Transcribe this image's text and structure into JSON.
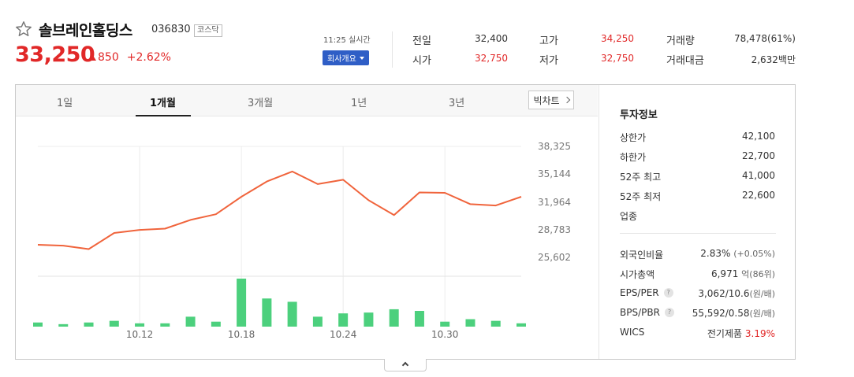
{
  "stock": {
    "name": "솔브레인홀딩스",
    "code": "036830",
    "market": "코스닥",
    "price": "33,250",
    "change": "850",
    "change_rate": "+2.62%",
    "realtime": "11:25 실시간",
    "overview_label": "회사개요"
  },
  "quotes": {
    "prev_close_label": "전일",
    "prev_close": "32,400",
    "open_label": "시가",
    "open": "32,750",
    "high_label": "고가",
    "high": "34,250",
    "low_label": "저가",
    "low": "32,750",
    "volume_label": "거래량",
    "volume": "78,478(61%)",
    "amount_label": "거래대금",
    "amount": "2,632백만"
  },
  "tabs": [
    {
      "label": "1일"
    },
    {
      "label": "1개월"
    },
    {
      "label": "3개월"
    },
    {
      "label": "1년"
    },
    {
      "label": "3년"
    }
  ],
  "bigchart_label": "빅차트",
  "info": {
    "title": "투자정보",
    "upper_limit_label": "상한가",
    "upper_limit": "42,100",
    "lower_limit_label": "하한가",
    "lower_limit": "22,700",
    "week52_high_label": "52주 최고",
    "week52_high": "41,000",
    "week52_low_label": "52주 최저",
    "week52_low": "22,600",
    "sector_label": "업종",
    "foreign_label": "외국인비율",
    "foreign_value": "2.83%",
    "foreign_change": "(+0.05%)",
    "market_cap_label": "시가총액",
    "market_cap_value": "6,971",
    "market_cap_unit": "억(86위)",
    "eps_label": "EPS/PER",
    "eps_value": "3,062/10.6",
    "eps_unit": "(원/배)",
    "bps_label": "BPS/PBR",
    "bps_value": "55,592/0.58",
    "bps_unit": "(원/배)",
    "wics_label": "WICS",
    "wics_sector": "전기제품",
    "wics_rate": "3.19%"
  },
  "colors": {
    "up": "#e12828",
    "down": "#2f5ec6",
    "line": "#f0643c",
    "volume_bar": "#4cd07d"
  },
  "chart_data": {
    "type": "line",
    "y_ticks": [
      "38,325",
      "35,144",
      "31,964",
      "28,783",
      "25,602"
    ],
    "x_ticks": [
      "10.12",
      "10.18",
      "10.24",
      "10.30"
    ],
    "ylim": [
      25602,
      38325
    ],
    "price_series": [
      27050,
      26950,
      26550,
      28400,
      28750,
      28900,
      29900,
      30550,
      32550,
      34300,
      35450,
      34000,
      34500,
      32150,
      30450,
      33050,
      33000,
      31700,
      31550,
      32550
    ],
    "volume_series": [
      5,
      3,
      5,
      7,
      4,
      4,
      12,
      6,
      58,
      34,
      30,
      12,
      16,
      17,
      21,
      19,
      6,
      9,
      7,
      4
    ],
    "volume_max": 58
  }
}
